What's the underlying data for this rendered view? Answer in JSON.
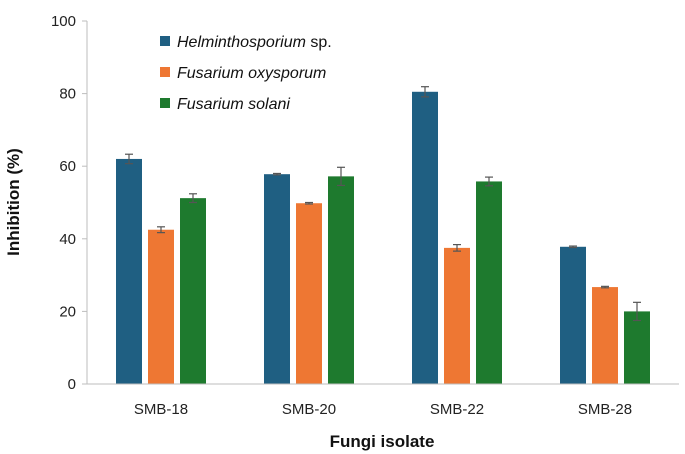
{
  "chart_data": {
    "type": "bar",
    "title": "",
    "xlabel": "Fungi isolate",
    "ylabel": "Inhibition (%)",
    "ylim": [
      0,
      100
    ],
    "yticks": [
      0,
      20,
      40,
      60,
      80,
      100
    ],
    "grid": false,
    "legend_position": "top-left",
    "categories": [
      "SMB-18",
      "SMB-20",
      "SMB-22",
      "SMB-28"
    ],
    "series": [
      {
        "name": "Helminthosporium sp.",
        "name_italic": "Helminthosporium",
        "name_suffix": " sp.",
        "color": "#1f5f82",
        "values": [
          62,
          57.8,
          80.5,
          37.8
        ],
        "errors": [
          1.3,
          0.2,
          1.4,
          0.2
        ]
      },
      {
        "name": "Fusarium oxysporum",
        "name_italic": "Fusarium oxysporum",
        "name_suffix": "",
        "color": "#ee7733",
        "values": [
          42.5,
          49.8,
          37.5,
          26.7
        ],
        "errors": [
          0.8,
          0.2,
          0.9,
          0.2
        ]
      },
      {
        "name": "Fusarium solani",
        "name_italic": "Fusarium solani",
        "name_suffix": "",
        "color": "#1e7a2e",
        "values": [
          51.2,
          57.2,
          55.8,
          20
        ],
        "errors": [
          1.2,
          2.5,
          1.2,
          2.5
        ]
      }
    ]
  }
}
